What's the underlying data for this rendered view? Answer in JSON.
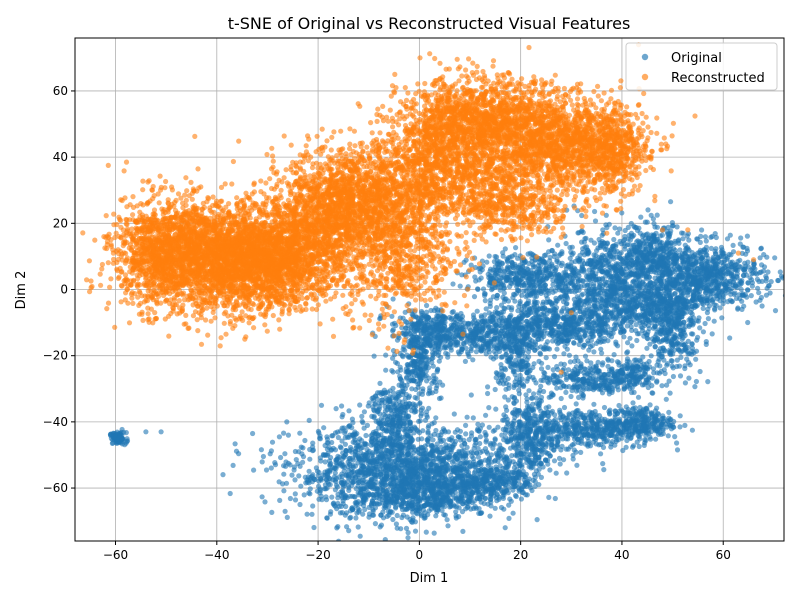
{
  "chart_data": {
    "type": "scatter",
    "title": "t-SNE of Original vs Reconstructed Visual Features",
    "xlabel": "Dim 1",
    "ylabel": "Dim 2",
    "xlim": [
      -68,
      72
    ],
    "ylim": [
      -76,
      76
    ],
    "xticks": [
      -60,
      -40,
      -20,
      0,
      20,
      40,
      60
    ],
    "yticks": [
      -60,
      -40,
      -20,
      0,
      20,
      40,
      60
    ],
    "xtick_labels": [
      "−60",
      "−40",
      "−20",
      "0",
      "20",
      "40",
      "60"
    ],
    "ytick_labels": [
      "−60",
      "−40",
      "−20",
      "0",
      "20",
      "40",
      "60"
    ],
    "grid": true,
    "legend_position": "top-right",
    "series": [
      {
        "name": "Original",
        "color": "#1f77b4",
        "clusters": [
          {
            "cx": -59.5,
            "cy": -45,
            "sx": 0.8,
            "sy": 0.9,
            "n": 90
          },
          {
            "cx": -3,
            "cy": -55,
            "sx": 11,
            "sy": 7,
            "n": 1800
          },
          {
            "cx": -5,
            "cy": -38,
            "sx": 2.5,
            "sy": 6,
            "n": 260
          },
          {
            "cx": 0,
            "cy": -22,
            "sx": 2.2,
            "sy": 6,
            "n": 260
          },
          {
            "cx": 2,
            "cy": -12,
            "sx": 4,
            "sy": 3,
            "n": 260
          },
          {
            "cx": 14,
            "cy": -58,
            "sx": 4,
            "sy": 2.5,
            "n": 280
          },
          {
            "cx": 22,
            "cy": -45,
            "sx": 3,
            "sy": 6,
            "n": 360
          },
          {
            "cx": 34,
            "cy": -42,
            "sx": 6,
            "sy": 3,
            "n": 420
          },
          {
            "cx": 44,
            "cy": -40,
            "sx": 3,
            "sy": 2.5,
            "n": 220
          },
          {
            "cx": 34,
            "cy": -27,
            "sx": 5,
            "sy": 2.5,
            "n": 280
          },
          {
            "cx": 42,
            "cy": -25,
            "sx": 2,
            "sy": 2.5,
            "n": 120
          },
          {
            "cx": 27,
            "cy": -11,
            "sx": 8,
            "sy": 4,
            "n": 700
          },
          {
            "cx": 19,
            "cy": -22,
            "sx": 2,
            "sy": 8,
            "n": 220
          },
          {
            "cx": 22,
            "cy": 4,
            "sx": 6,
            "sy": 3.5,
            "n": 450
          },
          {
            "cx": 38,
            "cy": 4,
            "sx": 6,
            "sy": 7,
            "n": 700
          },
          {
            "cx": 46,
            "cy": 10,
            "sx": 3,
            "sy": 5,
            "n": 260
          },
          {
            "cx": 56,
            "cy": 4,
            "sx": 6,
            "sy": 5,
            "n": 800
          },
          {
            "cx": 50,
            "cy": -12,
            "sx": 3,
            "sy": 7,
            "n": 360
          },
          {
            "cx": 44,
            "cy": -5,
            "sx": 4,
            "sy": 3,
            "n": 260
          },
          {
            "cx": 12,
            "cy": -14,
            "sx": 5,
            "sy": 3,
            "n": 280
          },
          {
            "cx": 1,
            "cy": -63,
            "sx": 5,
            "sy": 3,
            "n": 280
          }
        ],
        "points": [
          [
            -54,
            -43
          ],
          [
            -51,
            -43
          ]
        ]
      },
      {
        "name": "Reconstructed",
        "color": "#ff7f0e",
        "clusters": [
          {
            "cx": -40,
            "cy": 10,
            "sx": 9,
            "sy": 8,
            "n": 2800
          },
          {
            "cx": -28,
            "cy": 8,
            "sx": 6,
            "sy": 7,
            "n": 1000
          },
          {
            "cx": -52,
            "cy": 12,
            "sx": 4,
            "sy": 8,
            "n": 500
          },
          {
            "cx": -12,
            "cy": 28,
            "sx": 7,
            "sy": 8,
            "n": 1300
          },
          {
            "cx": -5,
            "cy": 12,
            "sx": 6,
            "sy": 10,
            "n": 800
          },
          {
            "cx": -20,
            "cy": 20,
            "sx": 5,
            "sy": 8,
            "n": 600
          },
          {
            "cx": 12,
            "cy": 50,
            "sx": 8,
            "sy": 7,
            "n": 1500
          },
          {
            "cx": 28,
            "cy": 44,
            "sx": 8,
            "sy": 7,
            "n": 1400
          },
          {
            "cx": 2,
            "cy": 38,
            "sx": 4,
            "sy": 8,
            "n": 500
          },
          {
            "cx": 38,
            "cy": 42,
            "sx": 3,
            "sy": 7,
            "n": 350
          },
          {
            "cx": 10,
            "cy": 30,
            "sx": 5,
            "sy": 6,
            "n": 400
          },
          {
            "cx": 20,
            "cy": 25,
            "sx": 5,
            "sy": 5,
            "n": 300
          }
        ],
        "points": [
          [
            66,
            9
          ],
          [
            63,
            11
          ],
          [
            48,
            18
          ],
          [
            53,
            18
          ],
          [
            28,
            -25
          ],
          [
            30,
            -7
          ],
          [
            39,
            24
          ],
          [
            37,
            17
          ],
          [
            -5,
            -14
          ],
          [
            -3,
            -16
          ],
          [
            7,
            -4
          ],
          [
            -8,
            -12
          ]
        ]
      }
    ]
  }
}
